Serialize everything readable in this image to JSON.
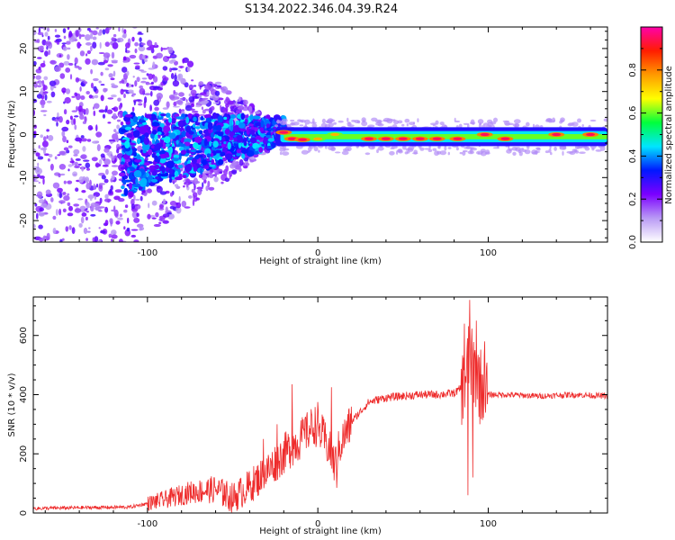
{
  "figure": {
    "title": "S134.2022.346.04.39.R24"
  },
  "chart_data": [
    {
      "type": "heatmap",
      "title": "S134.2022.346.04.39.R24",
      "xlabel": "Height of straight line (km)",
      "ylabel": "Frequency (Hz)",
      "xlim": [
        -167,
        170
      ],
      "ylim": [
        -25,
        25
      ],
      "xticks": [
        -100,
        0,
        100
      ],
      "yticks": [
        -20,
        -10,
        0,
        10,
        20
      ],
      "colorbar": {
        "label": "Normalized spectral amplitude",
        "range": [
          0,
          1
        ],
        "ticks": [
          "0.0",
          "0.2",
          "0.4",
          "0.6",
          "0.8"
        ],
        "colormap": [
          "#ffffff",
          "#b99af5",
          "#7b00ff",
          "#0018ff",
          "#00e5ff",
          "#00ff3c",
          "#ffff00",
          "#ff9a00",
          "#ff1d00",
          "#ff00aa"
        ]
      },
      "band": {
        "x_start": -25,
        "x_end": 170,
        "center_hz": -0.5,
        "hotspots": [
          {
            "x": -20,
            "hz": 0.5,
            "amp": 0.95
          },
          {
            "x": -15,
            "hz": -1,
            "amp": 0.95
          },
          {
            "x": -9,
            "hz": -1.2,
            "amp": 0.95
          },
          {
            "x": 0,
            "hz": -1,
            "amp": 0.75
          },
          {
            "x": 10,
            "hz": 0,
            "amp": 0.75
          },
          {
            "x": 30,
            "hz": -1,
            "amp": 0.95
          },
          {
            "x": 40,
            "hz": -1,
            "amp": 0.95
          },
          {
            "x": 50,
            "hz": -1,
            "amp": 0.95
          },
          {
            "x": 60,
            "hz": -1,
            "amp": 0.95
          },
          {
            "x": 70,
            "hz": -1,
            "amp": 0.95
          },
          {
            "x": 82,
            "hz": -1,
            "amp": 0.95
          },
          {
            "x": 98,
            "hz": 0,
            "amp": 0.95
          },
          {
            "x": 110,
            "hz": -1,
            "amp": 0.95
          },
          {
            "x": 140,
            "hz": 0,
            "amp": 0.95
          },
          {
            "x": 160,
            "hz": 0,
            "amp": 0.95
          }
        ]
      }
    },
    {
      "type": "line",
      "xlabel": "Height of straight line (km)",
      "ylabel": "SNR (10 * v/v)",
      "xlim": [
        -167,
        170
      ],
      "ylim": [
        0,
        730
      ],
      "xticks": [
        -100,
        0,
        100
      ],
      "yticks": [
        0,
        200,
        400,
        600
      ],
      "color": "#ee2b2b",
      "series": [
        {
          "x": [
            -167,
            -140,
            -110,
            -90,
            -75,
            -60,
            -50,
            -40,
            -30,
            -20,
            -10,
            -2,
            3,
            7,
            10,
            13,
            20,
            30,
            40,
            50,
            60,
            70,
            80,
            86,
            88,
            90,
            92,
            96,
            100,
            110,
            130,
            150,
            170
          ],
          "y": [
            15,
            18,
            20,
            45,
            70,
            80,
            50,
            90,
            140,
            200,
            250,
            300,
            260,
            210,
            160,
            230,
            310,
            375,
            390,
            395,
            400,
            400,
            405,
            430,
            520,
            500,
            480,
            430,
            400,
            400,
            395,
            400,
            395
          ]
        }
      ],
      "spikes": [
        {
          "x": -55,
          "y": 100
        },
        {
          "x": -32,
          "y": 250
        },
        {
          "x": -24,
          "y": 300
        },
        {
          "x": -15,
          "y": 435
        },
        {
          "x": -7,
          "y": 320
        },
        {
          "x": 0,
          "y": 375
        },
        {
          "x": 8,
          "y": 425
        },
        {
          "x": 11,
          "y": 85
        },
        {
          "x": 86,
          "y": 640
        },
        {
          "x": 88,
          "y": 60
        },
        {
          "x": 89,
          "y": 720
        },
        {
          "x": 91,
          "y": 120
        },
        {
          "x": 93,
          "y": 650
        },
        {
          "x": 95,
          "y": 300
        },
        {
          "x": 98,
          "y": 580
        }
      ]
    }
  ]
}
